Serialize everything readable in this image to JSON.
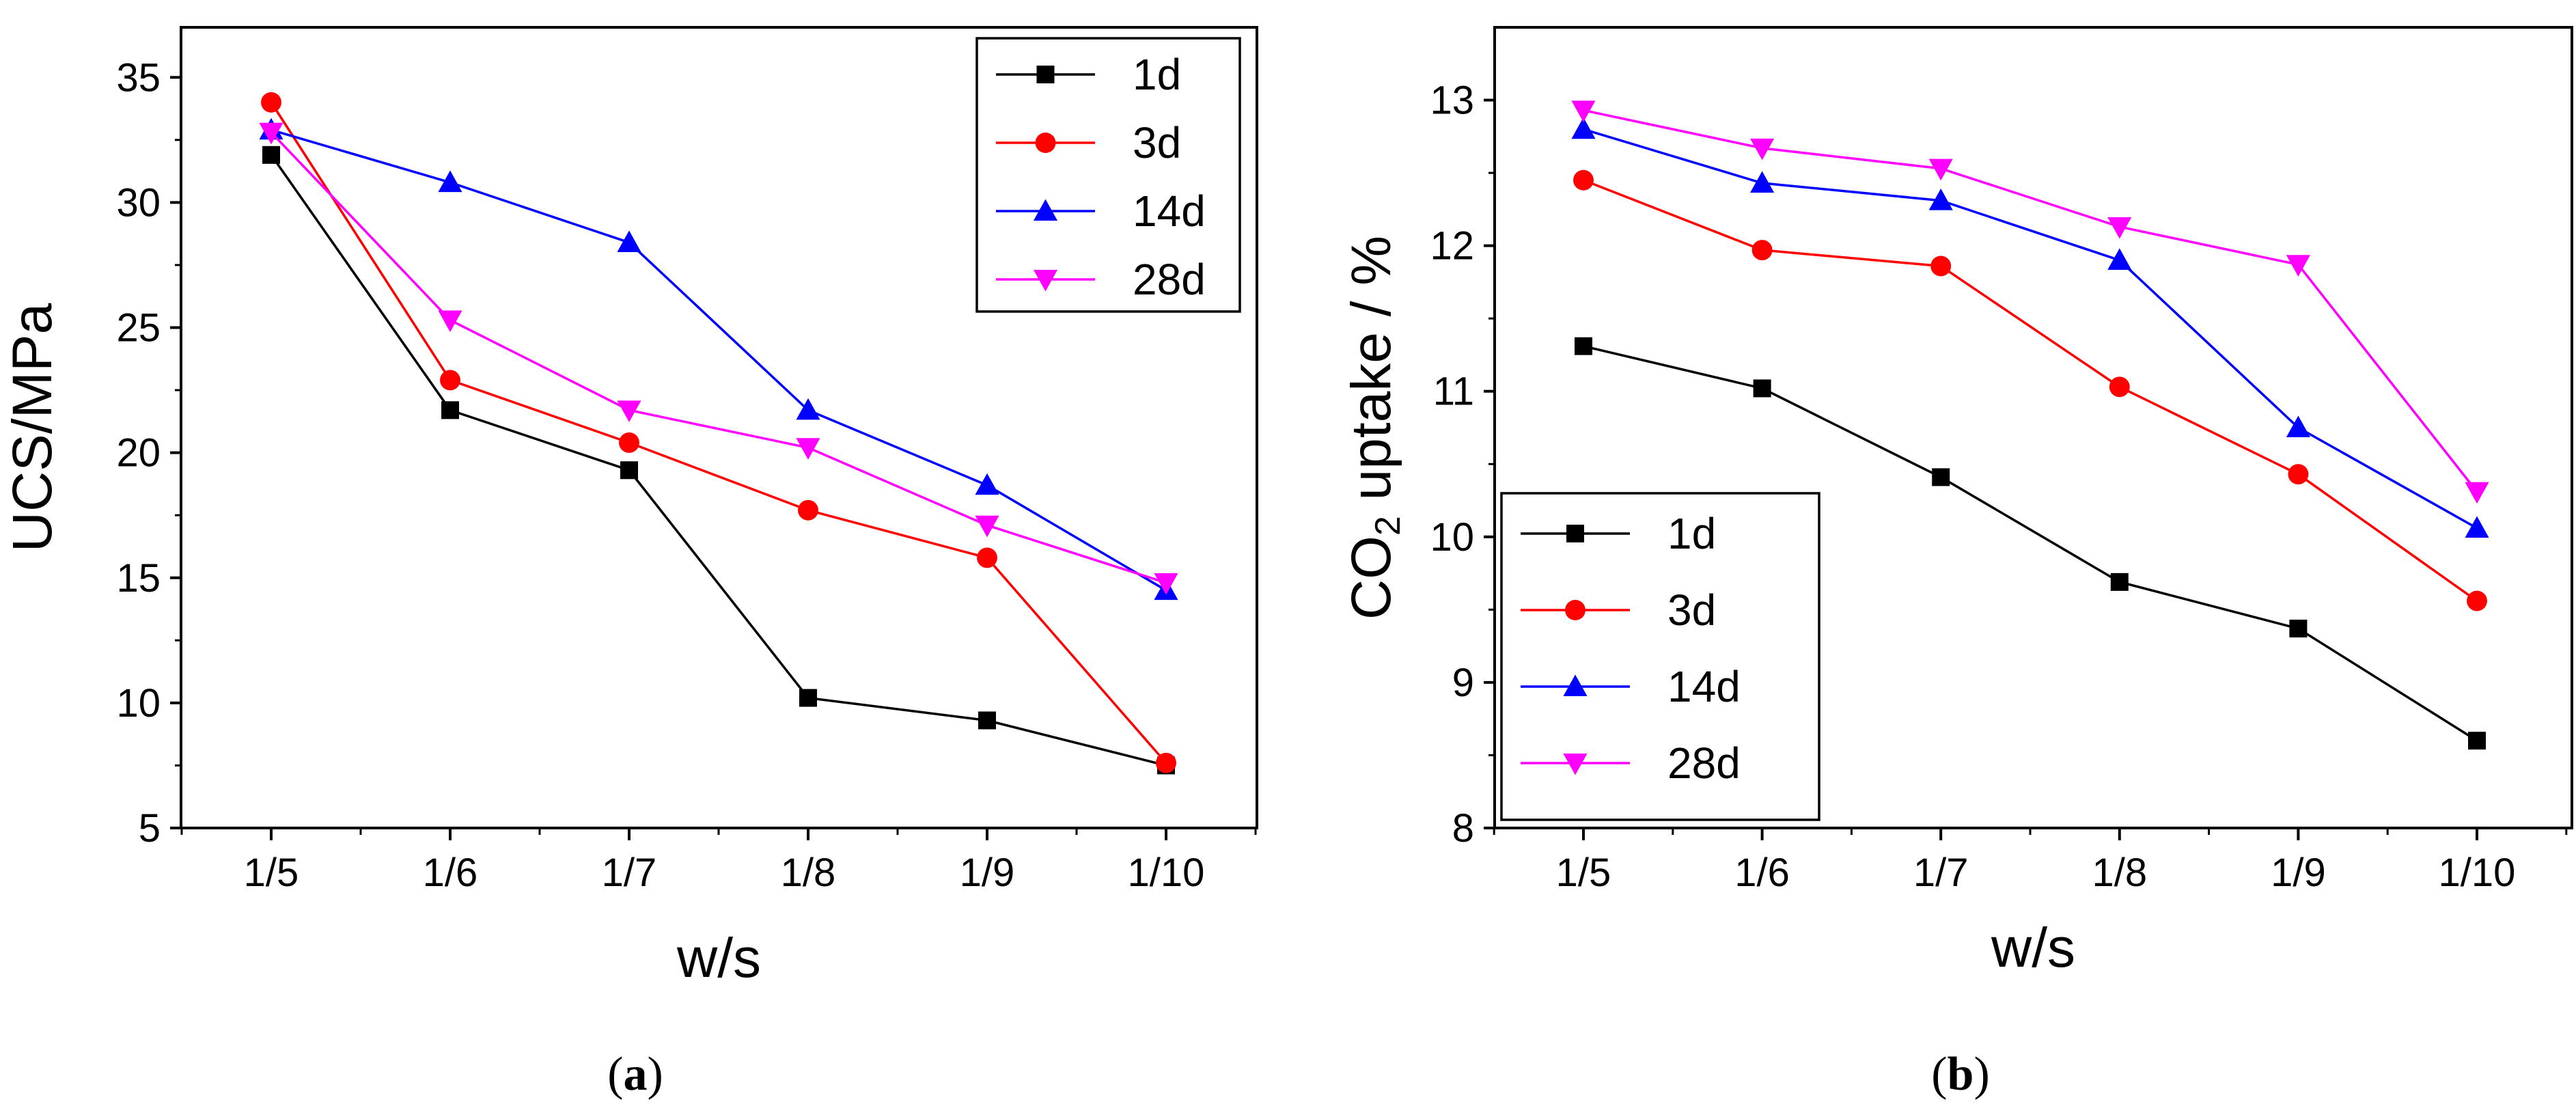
{
  "figure": {
    "panels": [
      {
        "label_open": "(",
        "label_letter": "a",
        "label_close": ")"
      },
      {
        "label_open": "(",
        "label_letter": "b",
        "label_close": ")"
      }
    ]
  },
  "chart_data": [
    {
      "type": "line",
      "title": "",
      "xlabel": "w/s",
      "ylabel": "UCS/MPa",
      "categories": [
        "1/5",
        "1/6",
        "1/7",
        "1/8",
        "1/9",
        "1/10"
      ],
      "ylim": [
        5,
        37
      ],
      "yticks": [
        5,
        10,
        15,
        20,
        25,
        30,
        35
      ],
      "legend_position": "top-right",
      "series": [
        {
          "name": "1d",
          "color": "#000000",
          "marker": "square",
          "values": [
            31.9,
            21.7,
            19.3,
            10.2,
            9.3,
            7.5
          ]
        },
        {
          "name": "3d",
          "color": "#ff0000",
          "marker": "circle",
          "values": [
            34.0,
            22.9,
            20.4,
            17.7,
            15.8,
            7.6
          ]
        },
        {
          "name": "14d",
          "color": "#0000ff",
          "marker": "triangle-up",
          "values": [
            32.9,
            30.8,
            28.4,
            21.7,
            18.7,
            14.5
          ]
        },
        {
          "name": "28d",
          "color": "#ff00ff",
          "marker": "triangle-down",
          "values": [
            32.8,
            25.3,
            21.7,
            20.2,
            17.1,
            14.8
          ]
        }
      ]
    },
    {
      "type": "line",
      "title": "",
      "xlabel": "w/s",
      "ylabel_main": "CO",
      "ylabel_sub": "2",
      "ylabel_rest": " uptake / %",
      "categories": [
        "1/5",
        "1/6",
        "1/7",
        "1/8",
        "1/9",
        "1/10"
      ],
      "ylim": [
        8,
        13.5
      ],
      "yticks": [
        8,
        9,
        10,
        11,
        12,
        13
      ],
      "legend_position": "bottom-left",
      "series": [
        {
          "name": "1d",
          "color": "#000000",
          "marker": "square",
          "values": [
            11.31,
            11.02,
            10.41,
            9.69,
            9.37,
            8.6
          ]
        },
        {
          "name": "3d",
          "color": "#ff0000",
          "marker": "circle",
          "values": [
            12.45,
            11.97,
            11.86,
            11.03,
            10.43,
            9.56
          ]
        },
        {
          "name": "14d",
          "color": "#0000ff",
          "marker": "triangle-up",
          "values": [
            12.8,
            12.43,
            12.31,
            11.9,
            10.75,
            10.06
          ]
        },
        {
          "name": "28d",
          "color": "#ff00ff",
          "marker": "triangle-down",
          "values": [
            12.93,
            12.67,
            12.53,
            12.13,
            11.87,
            10.31
          ]
        }
      ]
    }
  ]
}
